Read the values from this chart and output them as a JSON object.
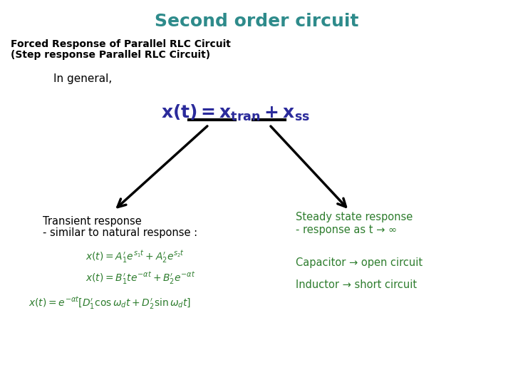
{
  "title": "Second order circuit",
  "title_color": "#2E8B8B",
  "subtitle1": "Forced Response of Parallel RLC Circuit",
  "subtitle2": "(Step response Parallel RLC Circuit)",
  "in_general": "In general,",
  "main_eq_color": "#2B2B9B",
  "transient_label1": "Transient response",
  "transient_label2": "- similar to natural response :",
  "transient_color": "#000000",
  "steady_label1": "Steady state response",
  "steady_label2": "- response as t → ∞",
  "steady_color": "#2E7D2E",
  "eq1": "$x(t) = A_1^{\\prime}e^{s_1 t} + A_2^{\\prime}e^{s_2 t}$",
  "eq2": "$x(t) = B_1^{\\prime}te^{-\\alpha t} + B_2^{\\prime}e^{-\\alpha t}$",
  "eq3": "$x(t) = e^{-\\alpha t}\\left[D_1^{\\prime}\\cos\\omega_d t + D_2^{\\prime}\\sin\\omega_d t\\right]$",
  "eq_color": "#2E7D2E",
  "cap_label": "Capacitor → open circuit",
  "ind_label": "Inductor → short circuit",
  "cap_ind_color": "#2E7D2E",
  "bg_color": "#FFFFFF",
  "arrow_color": "#000000"
}
